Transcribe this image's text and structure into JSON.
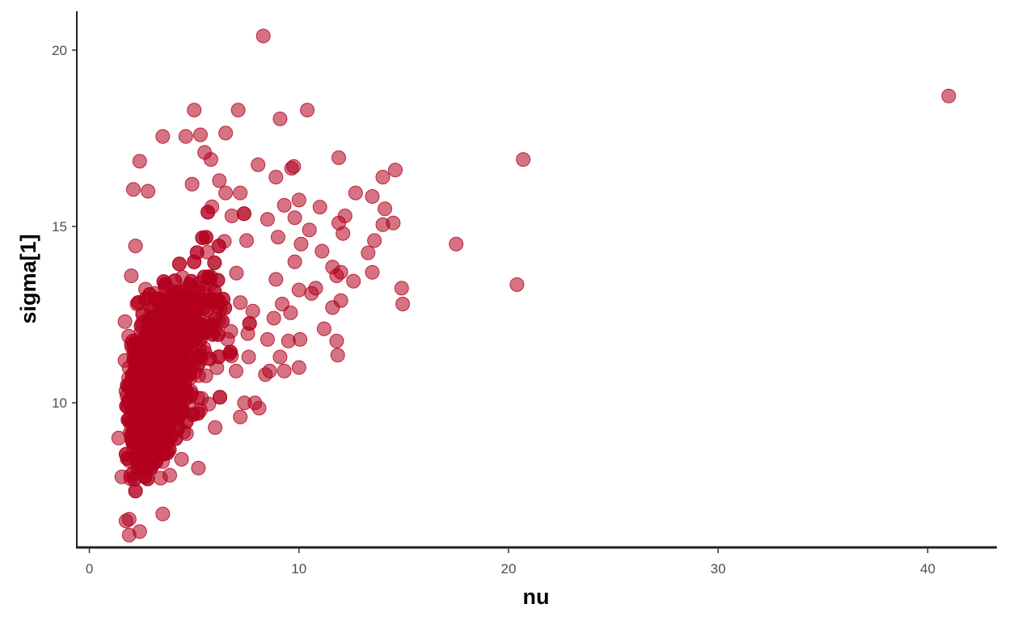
{
  "chart_data": {
    "type": "scatter",
    "title": "",
    "xlabel": "nu",
    "ylabel": "sigma[1]",
    "xlim": [
      -0.6,
      43.3
    ],
    "ylim": [
      5.9,
      21.1
    ],
    "xticks": [
      0,
      10,
      20,
      30,
      40
    ],
    "yticks": [
      10,
      15,
      20
    ],
    "xtick_labels": [
      "0",
      "10",
      "20",
      "30",
      "40"
    ],
    "ytick_labels": [
      "10",
      "15",
      "20"
    ],
    "grid": false,
    "legend": "none",
    "point_color": "#B2001E",
    "point_alpha": 0.55,
    "series": [
      {
        "points": [
          [
            8.3,
            20.4
          ],
          [
            41.0,
            18.7
          ],
          [
            20.7,
            16.9
          ],
          [
            17.5,
            14.5
          ],
          [
            20.4,
            13.35
          ],
          [
            14.9,
            13.25
          ],
          [
            14.95,
            12.8
          ],
          [
            14.6,
            16.6
          ],
          [
            14.0,
            16.4
          ],
          [
            13.5,
            15.85
          ],
          [
            14.1,
            15.5
          ],
          [
            14.5,
            15.1
          ],
          [
            14.0,
            15.05
          ],
          [
            13.6,
            14.6
          ],
          [
            13.3,
            14.25
          ],
          [
            13.5,
            13.7
          ],
          [
            12.7,
            15.95
          ],
          [
            12.2,
            15.3
          ],
          [
            11.9,
            15.1
          ],
          [
            12.1,
            14.8
          ],
          [
            11.9,
            16.95
          ],
          [
            11.0,
            15.55
          ],
          [
            10.5,
            14.9
          ],
          [
            11.1,
            14.3
          ],
          [
            10.1,
            14.5
          ],
          [
            11.6,
            13.85
          ],
          [
            11.8,
            13.6
          ],
          [
            12.0,
            13.7
          ],
          [
            12.6,
            13.45
          ],
          [
            12.0,
            12.9
          ],
          [
            11.6,
            12.7
          ],
          [
            11.2,
            12.1
          ],
          [
            11.8,
            11.75
          ],
          [
            11.85,
            11.35
          ],
          [
            10.05,
            11.8
          ],
          [
            10.0,
            11.0
          ],
          [
            9.3,
            10.9
          ],
          [
            9.1,
            11.3
          ],
          [
            9.5,
            11.75
          ],
          [
            10.4,
            18.3
          ],
          [
            9.1,
            18.05
          ],
          [
            7.1,
            18.3
          ],
          [
            5.0,
            18.3
          ],
          [
            9.65,
            16.65
          ],
          [
            9.75,
            16.7
          ],
          [
            10.0,
            15.75
          ],
          [
            9.3,
            15.6
          ],
          [
            8.9,
            16.4
          ],
          [
            8.05,
            16.75
          ],
          [
            9.8,
            15.25
          ],
          [
            10.6,
            13.1
          ],
          [
            10.8,
            13.25
          ],
          [
            10.0,
            13.2
          ],
          [
            9.6,
            12.55
          ],
          [
            9.2,
            12.8
          ],
          [
            8.8,
            12.4
          ],
          [
            8.5,
            11.8
          ],
          [
            8.6,
            10.9
          ],
          [
            8.1,
            9.85
          ],
          [
            7.9,
            10.0
          ],
          [
            7.4,
            10.0
          ],
          [
            7.2,
            9.6
          ],
          [
            6.5,
            17.65
          ],
          [
            5.3,
            17.6
          ],
          [
            3.5,
            17.55
          ],
          [
            4.6,
            17.55
          ],
          [
            5.5,
            17.1
          ],
          [
            2.4,
            16.85
          ],
          [
            2.1,
            16.05
          ],
          [
            2.8,
            16.0
          ],
          [
            7.2,
            15.95
          ],
          [
            6.5,
            15.95
          ],
          [
            5.2,
            8.15
          ],
          [
            3.5,
            6.85
          ],
          [
            2.4,
            6.35
          ],
          [
            1.9,
            6.25
          ],
          [
            1.9,
            6.7
          ],
          [
            1.75,
            6.65
          ],
          [
            4.4,
            8.4
          ],
          [
            1.55,
            7.9
          ],
          [
            1.4,
            9.0
          ],
          [
            1.7,
            11.2
          ],
          [
            1.7,
            12.3
          ],
          [
            2.0,
            13.6
          ],
          [
            2.2,
            14.45
          ],
          [
            6.0,
            9.3
          ],
          [
            7.0,
            10.9
          ],
          [
            6.6,
            11.8
          ],
          [
            7.6,
            11.3
          ],
          [
            8.4,
            10.8
          ],
          [
            7.8,
            12.6
          ],
          [
            8.9,
            13.5
          ],
          [
            9.8,
            14.0
          ],
          [
            9.0,
            14.7
          ],
          [
            8.5,
            15.2
          ],
          [
            7.5,
            14.6
          ],
          [
            6.8,
            15.3
          ],
          [
            6.2,
            16.3
          ],
          [
            5.8,
            16.9
          ],
          [
            4.9,
            16.2
          ]
        ]
      }
    ]
  }
}
